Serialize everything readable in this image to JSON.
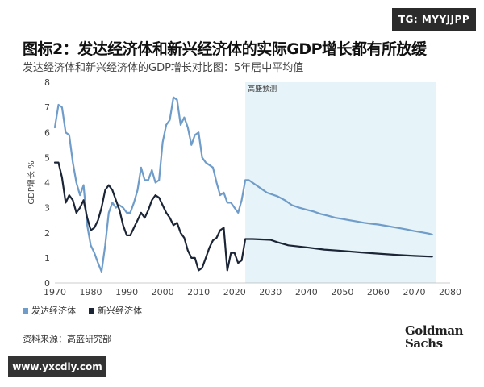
{
  "watermark_top": "TG: MYYJJPP",
  "watermark_bottom": "www.yxcdly.com",
  "title": "图标2：发达经济体和新兴经济体的实际GDP增长都有所放缓",
  "subtitle": "发达经济体和新兴经济体的GDP增长对比图：5年居中平均值",
  "source": "资料来源：高盛研究部",
  "logo": {
    "line1": "Goldman",
    "line2": "Sachs"
  },
  "colors": {
    "developed": "#6f9cc9",
    "emerging": "#1c2536",
    "forecast_band": "#e6f3f8"
  },
  "chart_data": {
    "type": "line",
    "ylabel": "GDP增长 %",
    "xlim": [
      1970,
      2080
    ],
    "ylim": [
      0,
      8
    ],
    "x_ticks": [
      1970,
      1980,
      1990,
      2000,
      2010,
      2020,
      2030,
      2040,
      2050,
      2060,
      2070,
      2080
    ],
    "y_ticks": [
      0,
      1,
      2,
      3,
      4,
      5,
      6,
      7,
      8
    ],
    "forecast": {
      "label": "高盛预测",
      "x_range": [
        2023,
        2076
      ]
    },
    "series": [
      {
        "name": "发达经济体",
        "color": "#6f9cc9",
        "points": [
          [
            1970,
            6.2
          ],
          [
            1971,
            7.1
          ],
          [
            1972,
            7.0
          ],
          [
            1973,
            6.0
          ],
          [
            1974,
            5.9
          ],
          [
            1975,
            4.8
          ],
          [
            1976,
            4.0
          ],
          [
            1977,
            3.5
          ],
          [
            1978,
            3.9
          ],
          [
            1979,
            2.3
          ],
          [
            1980,
            1.5
          ],
          [
            1981,
            1.2
          ],
          [
            1982,
            0.8
          ],
          [
            1983,
            0.45
          ],
          [
            1984,
            1.5
          ],
          [
            1985,
            2.8
          ],
          [
            1986,
            3.2
          ],
          [
            1987,
            3.0
          ],
          [
            1988,
            3.1
          ],
          [
            1989,
            3.0
          ],
          [
            1990,
            2.8
          ],
          [
            1991,
            2.8
          ],
          [
            1992,
            3.2
          ],
          [
            1993,
            3.7
          ],
          [
            1994,
            4.6
          ],
          [
            1995,
            4.1
          ],
          [
            1996,
            4.1
          ],
          [
            1997,
            4.5
          ],
          [
            1998,
            4.0
          ],
          [
            1999,
            4.1
          ],
          [
            2000,
            5.6
          ],
          [
            2001,
            6.3
          ],
          [
            2002,
            6.5
          ],
          [
            2003,
            7.4
          ],
          [
            2004,
            7.3
          ],
          [
            2005,
            6.3
          ],
          [
            2006,
            6.6
          ],
          [
            2007,
            6.2
          ],
          [
            2008,
            5.5
          ],
          [
            2009,
            5.9
          ],
          [
            2010,
            6.0
          ],
          [
            2011,
            5.0
          ],
          [
            2012,
            4.8
          ],
          [
            2013,
            4.7
          ],
          [
            2014,
            4.6
          ],
          [
            2015,
            4.0
          ],
          [
            2016,
            3.5
          ],
          [
            2017,
            3.6
          ],
          [
            2018,
            3.2
          ],
          [
            2019,
            3.2
          ],
          [
            2020,
            3.0
          ],
          [
            2021,
            2.8
          ],
          [
            2022,
            3.3
          ],
          [
            2023,
            4.1
          ],
          [
            2024,
            4.1
          ],
          [
            2025,
            4.0
          ],
          [
            2026,
            3.9
          ],
          [
            2027,
            3.8
          ],
          [
            2028,
            3.7
          ],
          [
            2029,
            3.6
          ],
          [
            2030,
            3.55
          ],
          [
            2032,
            3.45
          ],
          [
            2034,
            3.3
          ],
          [
            2036,
            3.1
          ],
          [
            2038,
            3.0
          ],
          [
            2040,
            2.92
          ],
          [
            2042,
            2.85
          ],
          [
            2044,
            2.75
          ],
          [
            2046,
            2.68
          ],
          [
            2048,
            2.6
          ],
          [
            2050,
            2.55
          ],
          [
            2052,
            2.5
          ],
          [
            2054,
            2.45
          ],
          [
            2056,
            2.4
          ],
          [
            2058,
            2.36
          ],
          [
            2060,
            2.33
          ],
          [
            2062,
            2.28
          ],
          [
            2064,
            2.23
          ],
          [
            2066,
            2.18
          ],
          [
            2068,
            2.13
          ],
          [
            2070,
            2.07
          ],
          [
            2072,
            2.02
          ],
          [
            2074,
            1.97
          ],
          [
            2075,
            1.93
          ]
        ]
      },
      {
        "name": "新兴经济体",
        "color": "#1c2536",
        "points": [
          [
            1970,
            4.8
          ],
          [
            1971,
            4.8
          ],
          [
            1972,
            4.2
          ],
          [
            1973,
            3.2
          ],
          [
            1974,
            3.5
          ],
          [
            1975,
            3.3
          ],
          [
            1976,
            2.8
          ],
          [
            1977,
            3.0
          ],
          [
            1978,
            3.3
          ],
          [
            1979,
            2.6
          ],
          [
            1980,
            2.1
          ],
          [
            1981,
            2.2
          ],
          [
            1982,
            2.5
          ],
          [
            1983,
            3.0
          ],
          [
            1984,
            3.7
          ],
          [
            1985,
            3.9
          ],
          [
            1986,
            3.7
          ],
          [
            1987,
            3.3
          ],
          [
            1988,
            2.9
          ],
          [
            1989,
            2.3
          ],
          [
            1990,
            1.9
          ],
          [
            1991,
            1.9
          ],
          [
            1992,
            2.2
          ],
          [
            1993,
            2.5
          ],
          [
            1994,
            2.8
          ],
          [
            1995,
            2.6
          ],
          [
            1996,
            2.9
          ],
          [
            1997,
            3.3
          ],
          [
            1998,
            3.5
          ],
          [
            1999,
            3.4
          ],
          [
            2000,
            3.1
          ],
          [
            2001,
            2.8
          ],
          [
            2002,
            2.6
          ],
          [
            2003,
            2.3
          ],
          [
            2004,
            2.4
          ],
          [
            2005,
            2.0
          ],
          [
            2006,
            1.8
          ],
          [
            2007,
            1.3
          ],
          [
            2008,
            1.0
          ],
          [
            2009,
            1.0
          ],
          [
            2010,
            0.5
          ],
          [
            2011,
            0.6
          ],
          [
            2012,
            1.0
          ],
          [
            2013,
            1.4
          ],
          [
            2014,
            1.7
          ],
          [
            2015,
            1.8
          ],
          [
            2016,
            2.1
          ],
          [
            2017,
            2.2
          ],
          [
            2018,
            0.5
          ],
          [
            2019,
            1.2
          ],
          [
            2020,
            1.2
          ],
          [
            2021,
            0.8
          ],
          [
            2022,
            0.9
          ],
          [
            2023,
            1.75
          ],
          [
            2025,
            1.75
          ],
          [
            2030,
            1.72
          ],
          [
            2032,
            1.62
          ],
          [
            2035,
            1.5
          ],
          [
            2040,
            1.42
          ],
          [
            2045,
            1.33
          ],
          [
            2050,
            1.28
          ],
          [
            2055,
            1.22
          ],
          [
            2060,
            1.17
          ],
          [
            2065,
            1.12
          ],
          [
            2070,
            1.08
          ],
          [
            2075,
            1.05
          ]
        ]
      }
    ]
  }
}
